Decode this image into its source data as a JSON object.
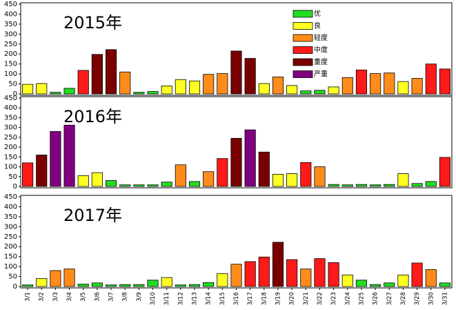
{
  "chart_data": [
    {
      "type": "bar",
      "title": "2015年",
      "ylim": [
        0,
        450
      ],
      "yticks": [
        0,
        50,
        100,
        150,
        200,
        250,
        300,
        350,
        400,
        450
      ],
      "legend": "top-right",
      "series": [
        {
          "name": "优",
          "color": "#22dd22",
          "values": [
            null,
            null,
            8,
            28,
            null,
            null,
            null,
            null,
            8,
            12,
            null,
            null,
            null,
            null,
            null,
            null,
            null,
            null,
            null,
            null,
            15,
            18,
            null,
            null,
            null,
            null,
            null,
            null,
            null,
            null,
            null
          ]
        },
        {
          "name": "良",
          "color": "#ffff22",
          "values": [
            48,
            52,
            null,
            null,
            null,
            null,
            null,
            null,
            null,
            null,
            40,
            72,
            65,
            null,
            null,
            null,
            null,
            52,
            null,
            42,
            null,
            null,
            35,
            null,
            null,
            null,
            null,
            62,
            null,
            null,
            null
          ]
        },
        {
          "name": "轻度",
          "color": "#ff8c1a",
          "values": [
            null,
            null,
            null,
            null,
            null,
            null,
            null,
            110,
            null,
            null,
            null,
            null,
            null,
            98,
            102,
            null,
            null,
            null,
            85,
            null,
            null,
            null,
            null,
            82,
            null,
            102,
            105,
            null,
            78,
            null,
            null
          ]
        },
        {
          "name": "中度",
          "color": "#ff1a1a",
          "values": [
            null,
            null,
            null,
            null,
            118,
            null,
            null,
            null,
            null,
            null,
            null,
            null,
            null,
            null,
            null,
            null,
            null,
            null,
            null,
            null,
            null,
            null,
            null,
            null,
            120,
            null,
            null,
            null,
            null,
            150,
            125
          ]
        },
        {
          "name": "重度",
          "color": "#7a0000",
          "values": [
            null,
            null,
            null,
            null,
            null,
            198,
            222,
            null,
            null,
            null,
            null,
            null,
            null,
            null,
            null,
            215,
            178,
            null,
            null,
            null,
            null,
            null,
            null,
            null,
            null,
            null,
            null,
            null,
            null,
            null,
            null
          ]
        },
        {
          "name": "严重",
          "color": "#800080",
          "values": [
            null,
            null,
            null,
            null,
            null,
            null,
            null,
            null,
            null,
            null,
            null,
            null,
            null,
            null,
            null,
            null,
            null,
            null,
            null,
            null,
            null,
            null,
            null,
            null,
            null,
            null,
            null,
            null,
            null,
            null,
            null
          ]
        }
      ]
    },
    {
      "type": "bar",
      "title": "2016年",
      "ylim": [
        0,
        450
      ],
      "yticks": [
        0,
        50,
        100,
        150,
        200,
        250,
        300,
        350,
        400,
        450
      ],
      "series": [
        {
          "values": [
            null,
            null,
            null,
            null,
            null,
            null,
            30,
            8,
            8,
            8,
            22,
            null,
            25,
            null,
            null,
            null,
            null,
            null,
            null,
            null,
            null,
            null,
            10,
            8,
            10,
            8,
            10,
            null,
            15,
            25,
            null
          ]
        },
        {
          "values": [
            null,
            null,
            null,
            null,
            55,
            70,
            null,
            null,
            null,
            null,
            null,
            null,
            null,
            null,
            null,
            null,
            null,
            null,
            62,
            65,
            null,
            null,
            null,
            null,
            null,
            null,
            null,
            65,
            null,
            null,
            null
          ]
        },
        {
          "values": [
            null,
            null,
            null,
            null,
            null,
            null,
            null,
            null,
            null,
            null,
            null,
            110,
            null,
            75,
            null,
            null,
            null,
            null,
            null,
            null,
            null,
            100,
            null,
            null,
            null,
            null,
            null,
            null,
            null,
            null,
            null
          ]
        },
        {
          "values": [
            120,
            null,
            null,
            null,
            null,
            null,
            null,
            null,
            null,
            null,
            null,
            null,
            null,
            null,
            142,
            null,
            null,
            null,
            null,
            null,
            122,
            null,
            null,
            null,
            null,
            null,
            null,
            null,
            null,
            null,
            148
          ]
        },
        {
          "values": [
            null,
            160,
            null,
            null,
            null,
            null,
            null,
            null,
            null,
            null,
            null,
            null,
            null,
            null,
            null,
            245,
            null,
            175,
            null,
            null,
            null,
            null,
            null,
            null,
            null,
            null,
            null,
            null,
            null,
            null,
            null
          ]
        },
        {
          "values": [
            null,
            null,
            280,
            312,
            null,
            null,
            null,
            null,
            null,
            null,
            null,
            null,
            null,
            null,
            null,
            null,
            288,
            null,
            null,
            null,
            null,
            null,
            null,
            null,
            null,
            null,
            null,
            null,
            null,
            null,
            null
          ]
        }
      ]
    },
    {
      "type": "bar",
      "title": "2017年",
      "ylim": [
        0,
        450
      ],
      "yticks": [
        0,
        50,
        100,
        150,
        200,
        250,
        300,
        350,
        400,
        450
      ],
      "categories": [
        "3/1",
        "3/2",
        "3/3",
        "3/4",
        "3/5",
        "3/6",
        "3/7",
        "3/8",
        "3/9",
        "3/10",
        "3/11",
        "3/12",
        "3/13",
        "3/14",
        "3/15",
        "3/16",
        "3/17",
        "3/18",
        "3/19",
        "3/20",
        "3/21",
        "3/22",
        "3/23",
        "3/24",
        "3/25",
        "3/26",
        "3/27",
        "3/28",
        "3/29",
        "3/30",
        "3/31"
      ],
      "series": [
        {
          "values": [
            8,
            null,
            null,
            null,
            12,
            18,
            8,
            10,
            10,
            32,
            null,
            8,
            10,
            20,
            null,
            null,
            null,
            null,
            null,
            null,
            null,
            null,
            null,
            null,
            32,
            10,
            18,
            null,
            null,
            null,
            18
          ]
        },
        {
          "values": [
            null,
            40,
            null,
            null,
            null,
            null,
            null,
            null,
            null,
            null,
            45,
            null,
            null,
            null,
            65,
            null,
            null,
            null,
            null,
            null,
            null,
            null,
            null,
            58,
            null,
            null,
            null,
            58,
            null,
            null,
            null
          ]
        },
        {
          "values": [
            null,
            null,
            80,
            88,
            null,
            null,
            null,
            null,
            null,
            null,
            null,
            null,
            null,
            null,
            null,
            112,
            null,
            null,
            null,
            null,
            88,
            null,
            null,
            null,
            null,
            null,
            null,
            null,
            null,
            85,
            null
          ]
        },
        {
          "values": [
            null,
            null,
            null,
            null,
            null,
            null,
            null,
            null,
            null,
            null,
            null,
            null,
            null,
            null,
            null,
            null,
            125,
            148,
            null,
            135,
            null,
            140,
            120,
            null,
            null,
            null,
            null,
            null,
            118,
            null,
            null
          ]
        },
        {
          "values": [
            null,
            null,
            null,
            null,
            null,
            null,
            null,
            null,
            null,
            null,
            null,
            null,
            null,
            null,
            null,
            null,
            null,
            null,
            222,
            null,
            null,
            null,
            null,
            null,
            null,
            null,
            null,
            null,
            null,
            null,
            null
          ]
        },
        {
          "values": [
            null,
            null,
            null,
            null,
            null,
            null,
            null,
            null,
            null,
            null,
            null,
            null,
            null,
            null,
            null,
            null,
            null,
            null,
            null,
            null,
            null,
            null,
            null,
            null,
            null,
            null,
            null,
            null,
            null,
            null,
            null
          ]
        }
      ]
    }
  ]
}
